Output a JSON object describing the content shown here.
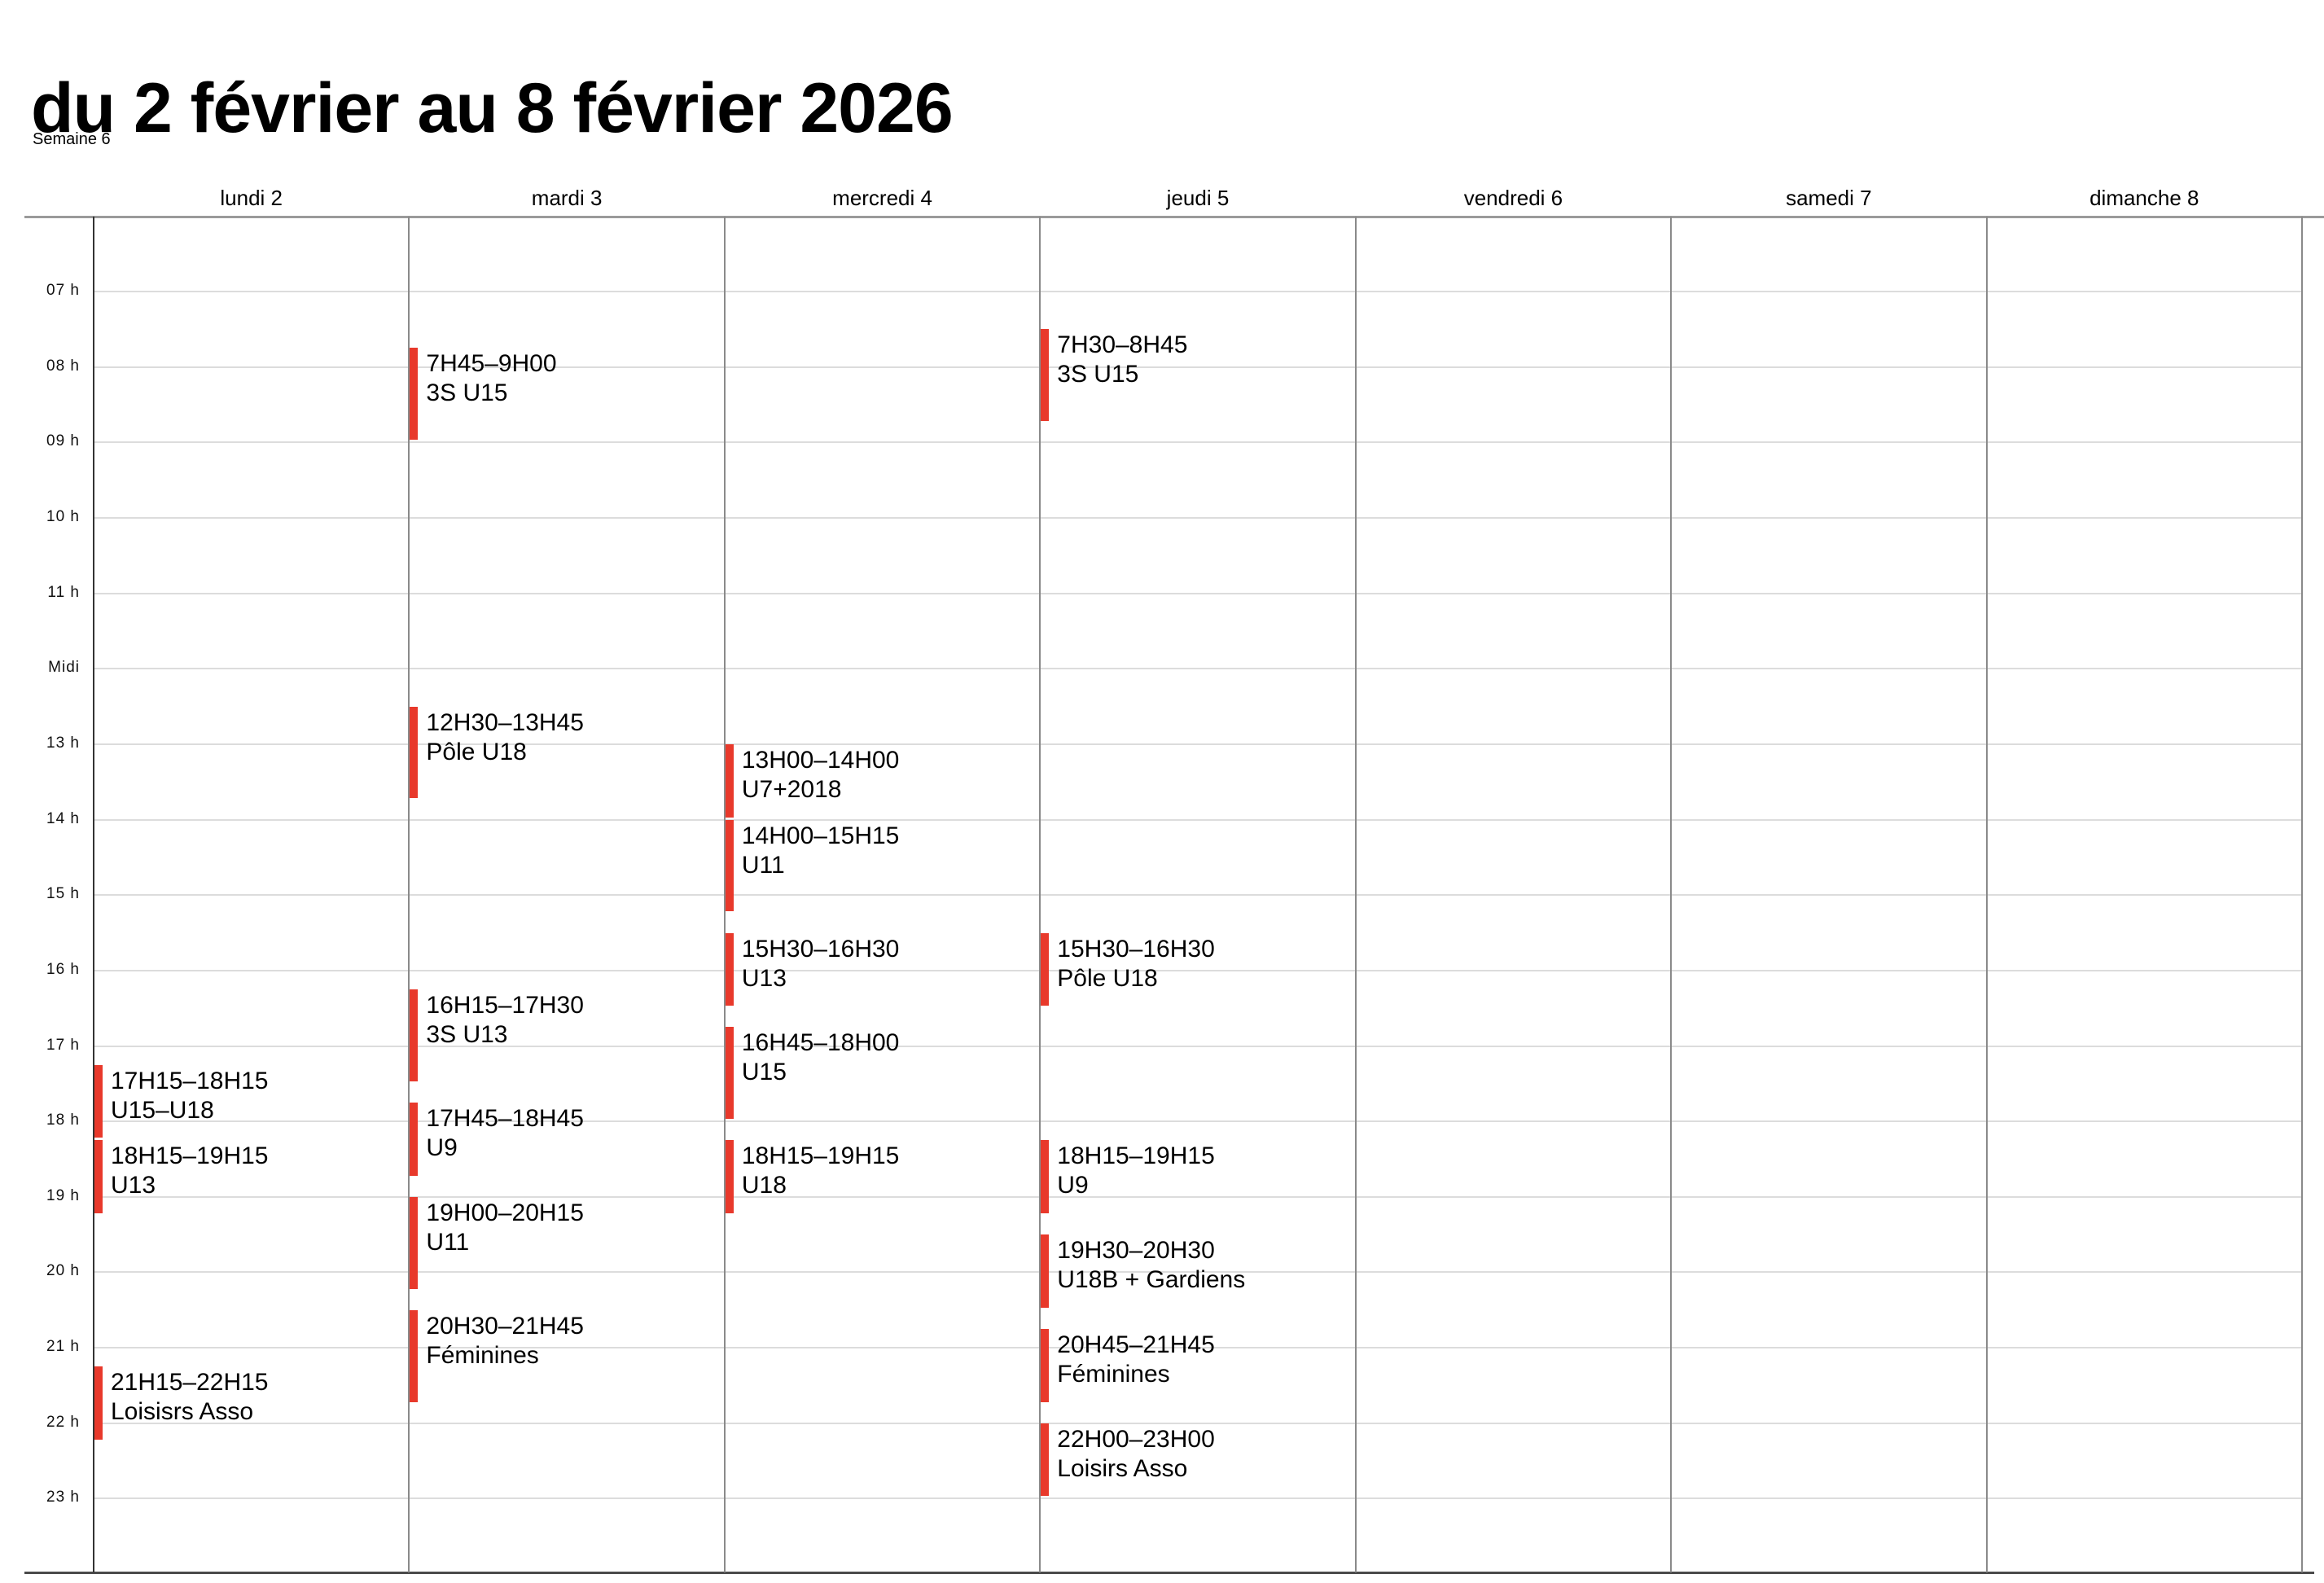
{
  "header": {
    "title": "du 2 février au 8 février 2026",
    "week_label": "Semaine 6"
  },
  "days": [
    {
      "label": "lundi 2"
    },
    {
      "label": "mardi 3"
    },
    {
      "label": "mercredi 4"
    },
    {
      "label": "jeudi 5"
    },
    {
      "label": "vendredi 6"
    },
    {
      "label": "samedi 7"
    },
    {
      "label": "dimanche 8"
    }
  ],
  "hours": [
    {
      "hour": 7,
      "label": "07 h"
    },
    {
      "hour": 8,
      "label": "08 h"
    },
    {
      "hour": 9,
      "label": "09 h"
    },
    {
      "hour": 10,
      "label": "10 h"
    },
    {
      "hour": 11,
      "label": "11 h"
    },
    {
      "hour": 12,
      "label": "Midi"
    },
    {
      "hour": 13,
      "label": "13 h"
    },
    {
      "hour": 14,
      "label": "14 h"
    },
    {
      "hour": 15,
      "label": "15 h"
    },
    {
      "hour": 16,
      "label": "16 h"
    },
    {
      "hour": 17,
      "label": "17 h"
    },
    {
      "hour": 18,
      "label": "18 h"
    },
    {
      "hour": 19,
      "label": "19 h"
    },
    {
      "hour": 20,
      "label": "20 h"
    },
    {
      "hour": 21,
      "label": "21 h"
    },
    {
      "hour": 22,
      "label": "22 h"
    },
    {
      "hour": 23,
      "label": "23 h"
    }
  ],
  "events": [
    {
      "day": 0,
      "start": "17H15",
      "end": "18H15",
      "time_label": "17H15–18H15",
      "title": "U15–U18"
    },
    {
      "day": 0,
      "start": "18H15",
      "end": "19H15",
      "time_label": "18H15–19H15",
      "title": "U13"
    },
    {
      "day": 0,
      "start": "21H15",
      "end": "22H15",
      "time_label": "21H15–22H15",
      "title": "Loisisrs Asso"
    },
    {
      "day": 1,
      "start": "7H45",
      "end": "9H00",
      "time_label": "7H45–9H00",
      "title": "3S U15"
    },
    {
      "day": 1,
      "start": "12H30",
      "end": "13H45",
      "time_label": "12H30–13H45",
      "title": "Pôle U18"
    },
    {
      "day": 1,
      "start": "16H15",
      "end": "17H30",
      "time_label": "16H15–17H30",
      "title": "3S U13"
    },
    {
      "day": 1,
      "start": "17H45",
      "end": "18H45",
      "time_label": "17H45–18H45",
      "title": "U9"
    },
    {
      "day": 1,
      "start": "19H00",
      "end": "20H15",
      "time_label": "19H00–20H15",
      "title": "U11"
    },
    {
      "day": 1,
      "start": "20H30",
      "end": "21H45",
      "time_label": "20H30–21H45",
      "title": "Féminines"
    },
    {
      "day": 2,
      "start": "13H00",
      "end": "14H00",
      "time_label": "13H00–14H00",
      "title": "U7+2018"
    },
    {
      "day": 2,
      "start": "14H00",
      "end": "15H15",
      "time_label": "14H00–15H15",
      "title": "U11"
    },
    {
      "day": 2,
      "start": "15H30",
      "end": "16H30",
      "time_label": "15H30–16H30",
      "title": "U13"
    },
    {
      "day": 2,
      "start": "16H45",
      "end": "18H00",
      "time_label": "16H45–18H00",
      "title": "U15"
    },
    {
      "day": 2,
      "start": "18H15",
      "end": "19H15",
      "time_label": "18H15–19H15",
      "title": "U18"
    },
    {
      "day": 3,
      "start": "7H30",
      "end": "8H45",
      "time_label": "7H30–8H45",
      "title": "3S U15"
    },
    {
      "day": 3,
      "start": "15H30",
      "end": "16H30",
      "time_label": "15H30–16H30",
      "title": "Pôle U18"
    },
    {
      "day": 3,
      "start": "18H15",
      "end": "19H15",
      "time_label": "18H15–19H15",
      "title": "U9"
    },
    {
      "day": 3,
      "start": "19H30",
      "end": "20H30",
      "time_label": "19H30–20H30",
      "title": "U18B + Gardiens"
    },
    {
      "day": 3,
      "start": "20H45",
      "end": "21H45",
      "time_label": "20H45–21H45",
      "title": "Féminines"
    },
    {
      "day": 3,
      "start": "22H00",
      "end": "23H00",
      "time_label": "22H00–23H00",
      "title": "Loisirs Asso"
    }
  ],
  "colors": {
    "event_accent": "#e8392b"
  }
}
